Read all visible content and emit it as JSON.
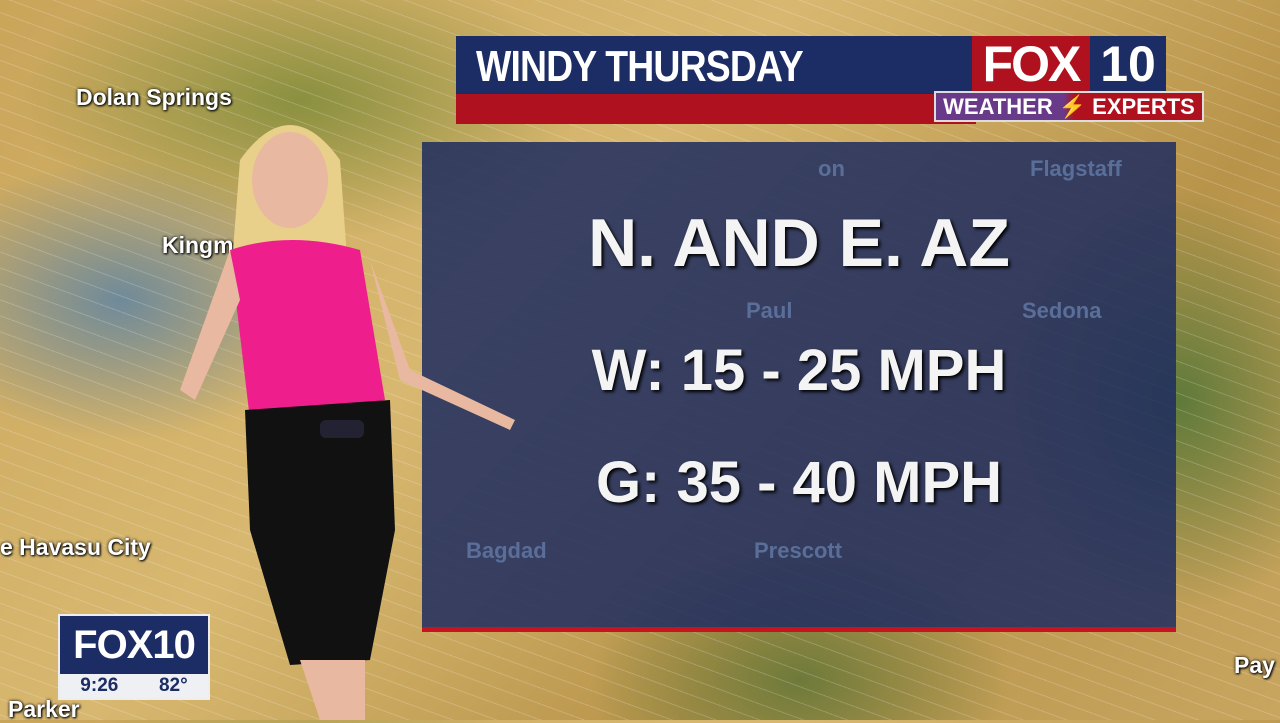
{
  "header": {
    "title": "WINDY THURSDAY"
  },
  "logo": {
    "fox": "FOX",
    "ten": "10",
    "weather": "WEATHER",
    "experts": "EXPERTS",
    "bolt_icon": "lightning-bolt"
  },
  "panel": {
    "line1": "N. AND E.  AZ",
    "line2": "W: 15 - 25 MPH",
    "line3": "G: 35 - 40 MPH"
  },
  "map_labels": {
    "dolan": "Dolan Springs",
    "kingman": "Kingm",
    "havasu": "e Havasu City",
    "parker": "Parker",
    "payson": "Pay"
  },
  "panel_map_labels": {
    "flagstaff": "Flagstaff",
    "sedona": "Sedona",
    "paulden": "Paul",
    "bagdad": "Bagdad",
    "prescott": "Prescott",
    "partial": "on"
  },
  "bug": {
    "station": "FOX10",
    "time": "9:26",
    "temp": "82°"
  },
  "colors": {
    "navy": "#1c2c64",
    "red": "#b0111e",
    "top_color": "#ff1f8e"
  }
}
